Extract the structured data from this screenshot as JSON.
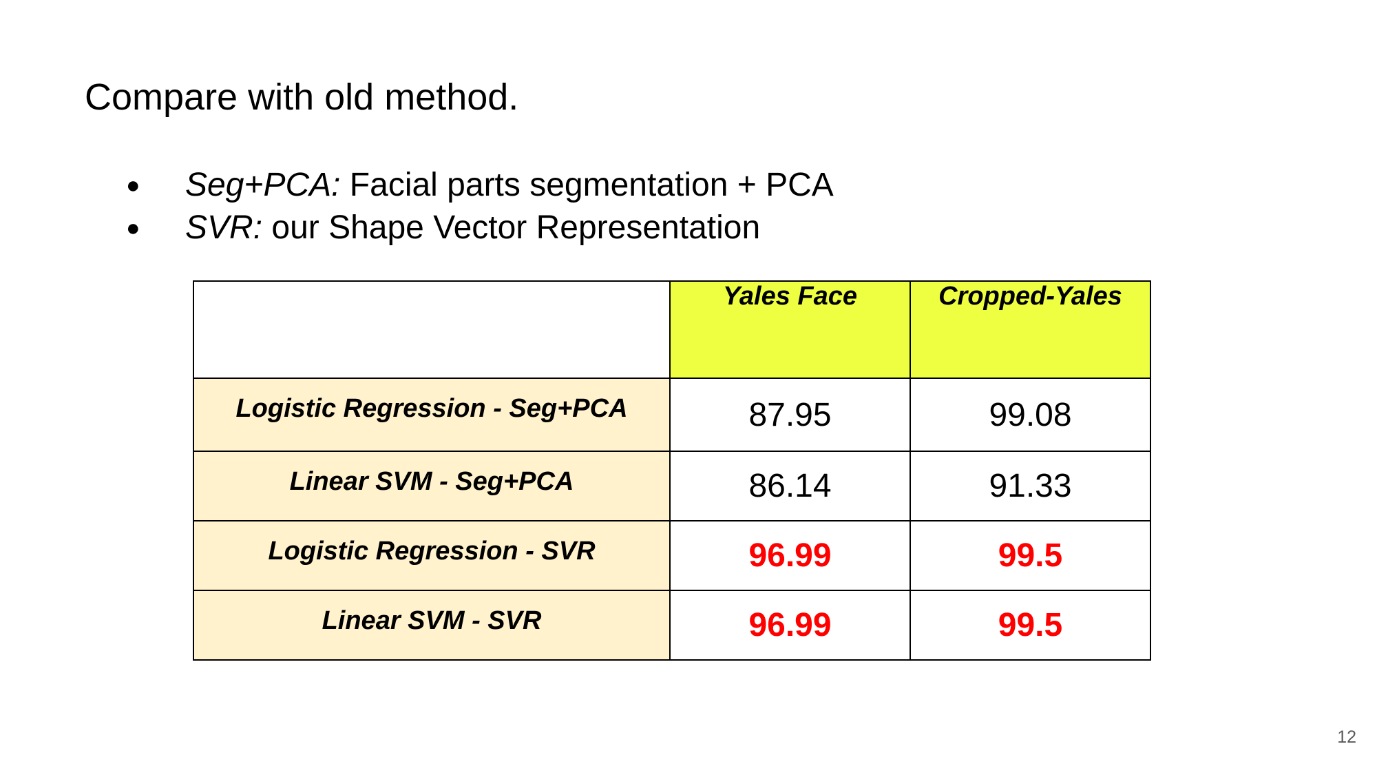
{
  "colors": {
    "header_bg": "#EEFF41",
    "method_bg": "#FFF2CC",
    "best_value": "#FF0000",
    "text": "#000000",
    "page_number": "#595959"
  },
  "slide": {
    "title": "Compare with old method.",
    "bullets": [
      {
        "term": "Seg+PCA:",
        "desc": " Facial parts segmentation + PCA"
      },
      {
        "term": "SVR:",
        "desc": " our Shape Vector Representation"
      }
    ],
    "table": {
      "headers": [
        "",
        "Yales Face",
        "Cropped-Yales"
      ],
      "rows": [
        {
          "method": "Logistic Regression - Seg+PCA",
          "yales_face": "87.95",
          "cropped_yales": "99.08"
        },
        {
          "method": "Linear SVM - Seg+PCA",
          "yales_face": "86.14",
          "cropped_yales": "91.33"
        },
        {
          "method": "Logistic Regression - SVR",
          "yales_face": "96.99",
          "cropped_yales": "99.5"
        },
        {
          "method": "Linear SVM - SVR",
          "yales_face": "96.99",
          "cropped_yales": "99.5"
        }
      ]
    },
    "page_number": "12"
  }
}
